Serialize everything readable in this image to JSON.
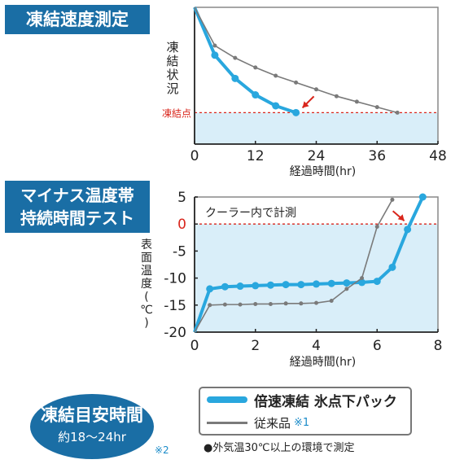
{
  "section1_title": "凍結速度測定",
  "section2_title_line1": "マイナス温度帯",
  "section2_title_line2": "持続時間テスト",
  "bottom_title": "凍結目安時間",
  "bottom_subtitle": "約18～24hr",
  "note_mark": "※2",
  "legend": {
    "series1": "倍速凍結 氷点下パック",
    "series2": "従来品",
    "series2_mark": "※1"
  },
  "footnote": "●外気温30℃以上の環境で測定",
  "colors": {
    "blue_line": "#29a7de",
    "gray_line": "#7a7a7a",
    "fill": "#d9eef9",
    "red": "#d9261c",
    "box": "#1a6ea5"
  },
  "chart_data": [
    {
      "type": "line",
      "title": "凍結速度測定",
      "xlabel": "経過時間(hr)",
      "ylabel": "凍結状況",
      "annotation": "凍結点",
      "x_ticks": [
        "0",
        "12",
        "24",
        "36",
        "48"
      ],
      "xlim": [
        0,
        48
      ],
      "ylim": [
        0,
        100
      ],
      "freeze_level": 23,
      "series": [
        {
          "name": "倍速凍結 氷点下パック",
          "x": [
            0,
            4,
            8,
            12,
            16,
            20
          ],
          "y": [
            100,
            65,
            48,
            36,
            28,
            23
          ]
        },
        {
          "name": "従来品",
          "x": [
            0,
            4,
            8,
            12,
            16,
            20,
            24,
            28,
            32,
            36,
            40
          ],
          "y": [
            100,
            72,
            63,
            56,
            50,
            45,
            40,
            35,
            31,
            27,
            23
          ]
        }
      ]
    },
    {
      "type": "line",
      "title": "マイナス温度帯持続時間テスト",
      "xlabel": "経過時間(hr)",
      "ylabel": "表面温度(℃)",
      "annotation": "クーラー内で計測",
      "x_ticks": [
        "0",
        "2",
        "4",
        "6",
        "8"
      ],
      "y_ticks": [
        "5",
        "0",
        "-5",
        "-10",
        "-15",
        "-20"
      ],
      "xlim": [
        0,
        8
      ],
      "ylim": [
        -20,
        5
      ],
      "series": [
        {
          "name": "倍速凍結 氷点下パック",
          "x": [
            0,
            0.5,
            1,
            1.5,
            2,
            2.5,
            3,
            3.5,
            4,
            4.5,
            5,
            5.5,
            6,
            6.5,
            7,
            7.5
          ],
          "y": [
            -20,
            -12,
            -11.6,
            -11.5,
            -11.4,
            -11.3,
            -11.2,
            -11.2,
            -11.1,
            -11,
            -10.9,
            -10.8,
            -10.6,
            -8,
            -1,
            5
          ]
        },
        {
          "name": "従来品",
          "x": [
            0,
            0.5,
            1,
            1.5,
            2,
            2.5,
            3,
            3.5,
            4,
            4.5,
            5,
            5.5,
            6,
            6.5
          ],
          "y": [
            -20,
            -15,
            -14.9,
            -14.9,
            -14.8,
            -14.8,
            -14.7,
            -14.7,
            -14.6,
            -14.2,
            -12,
            -10,
            -0.5,
            4.5
          ]
        }
      ]
    }
  ]
}
